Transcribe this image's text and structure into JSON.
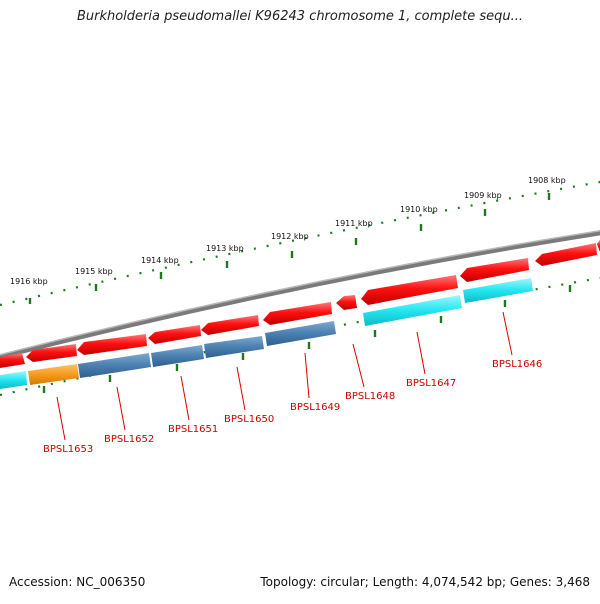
{
  "title": "Burkholderia pseudomallei K96243 chromosome 1, complete sequ...",
  "footer": {
    "accession": "Accession: NC_006350",
    "summary": "Topology: circular; Length: 4,074,542 bp; Genes: 3,468"
  },
  "ruler_labels": [
    "1916 kbp",
    "1915 kbp",
    "1914 kbp",
    "1913 kbp",
    "1912 kbp",
    "1911 kbp",
    "1910 kbp",
    "1909 kbp",
    "1908 kbp"
  ],
  "gene_labels": [
    "BPSL1653",
    "BPSL1652",
    "BPSL1651",
    "BPSL1650",
    "BPSL1649",
    "BPSL1648",
    "BPSL1647",
    "BPSL1646"
  ],
  "colors": {
    "backbone": "#7a7a7a",
    "feature_red": "#e8000b",
    "cds_steelblue": "#4a7fb0",
    "cds_cyan": "#22e6f0",
    "cds_orange": "#f59a1c",
    "tick_green": "#1c7a1c",
    "gene_label": "#cc0000"
  }
}
